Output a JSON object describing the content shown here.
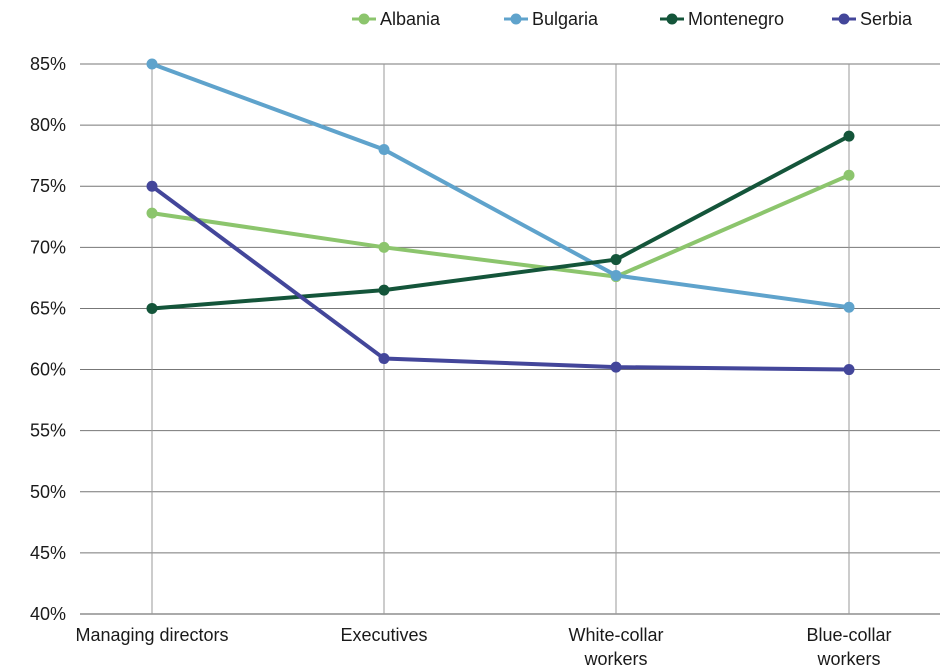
{
  "chart_data": {
    "type": "line",
    "title": "",
    "xlabel": "",
    "ylabel": "",
    "categories": [
      [
        "Managing directors"
      ],
      [
        "Executives"
      ],
      [
        "White-collar",
        "workers"
      ],
      [
        "Blue-collar",
        "workers"
      ]
    ],
    "y_ticks": [
      "40%",
      "45%",
      "50%",
      "55%",
      "60%",
      "65%",
      "70%",
      "75%",
      "80%",
      "85%"
    ],
    "ylim": [
      40,
      85
    ],
    "grid": true,
    "legend_position": "top-right",
    "series": [
      {
        "name": "Albania",
        "color": "#8cc56d",
        "values": [
          72.8,
          70.0,
          67.6,
          75.9
        ]
      },
      {
        "name": "Bulgaria",
        "color": "#5fa3cc",
        "values": [
          85.0,
          78.0,
          67.7,
          65.1
        ]
      },
      {
        "name": "Montenegro",
        "color": "#14553a",
        "values": [
          65.0,
          66.5,
          69.0,
          79.1
        ]
      },
      {
        "name": "Serbia",
        "color": "#43469a",
        "values": [
          75.0,
          60.9,
          60.2,
          60.0
        ]
      }
    ]
  }
}
